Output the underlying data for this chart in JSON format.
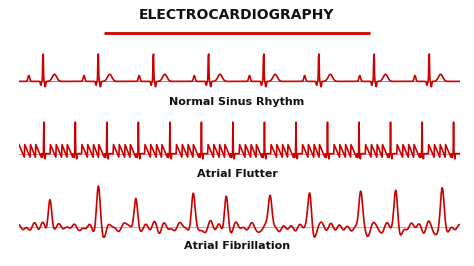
{
  "title": "ELECTROCARDIOGRAPHY",
  "title_color": "#111111",
  "title_fontsize": 10,
  "underline_color": "#cc0000",
  "ecg_color": "#cc0000",
  "background_color": "#ffffff",
  "labels": [
    "Normal Sinus Rhythm",
    "Atrial Flutter",
    "Atrial Fibrillation"
  ],
  "label_fontsize": 8,
  "label_fontweight": "bold",
  "line_width": 1.2,
  "sr": 1000,
  "nsr_beats": 8,
  "flutter_beats": 14,
  "afib_beats": 10
}
